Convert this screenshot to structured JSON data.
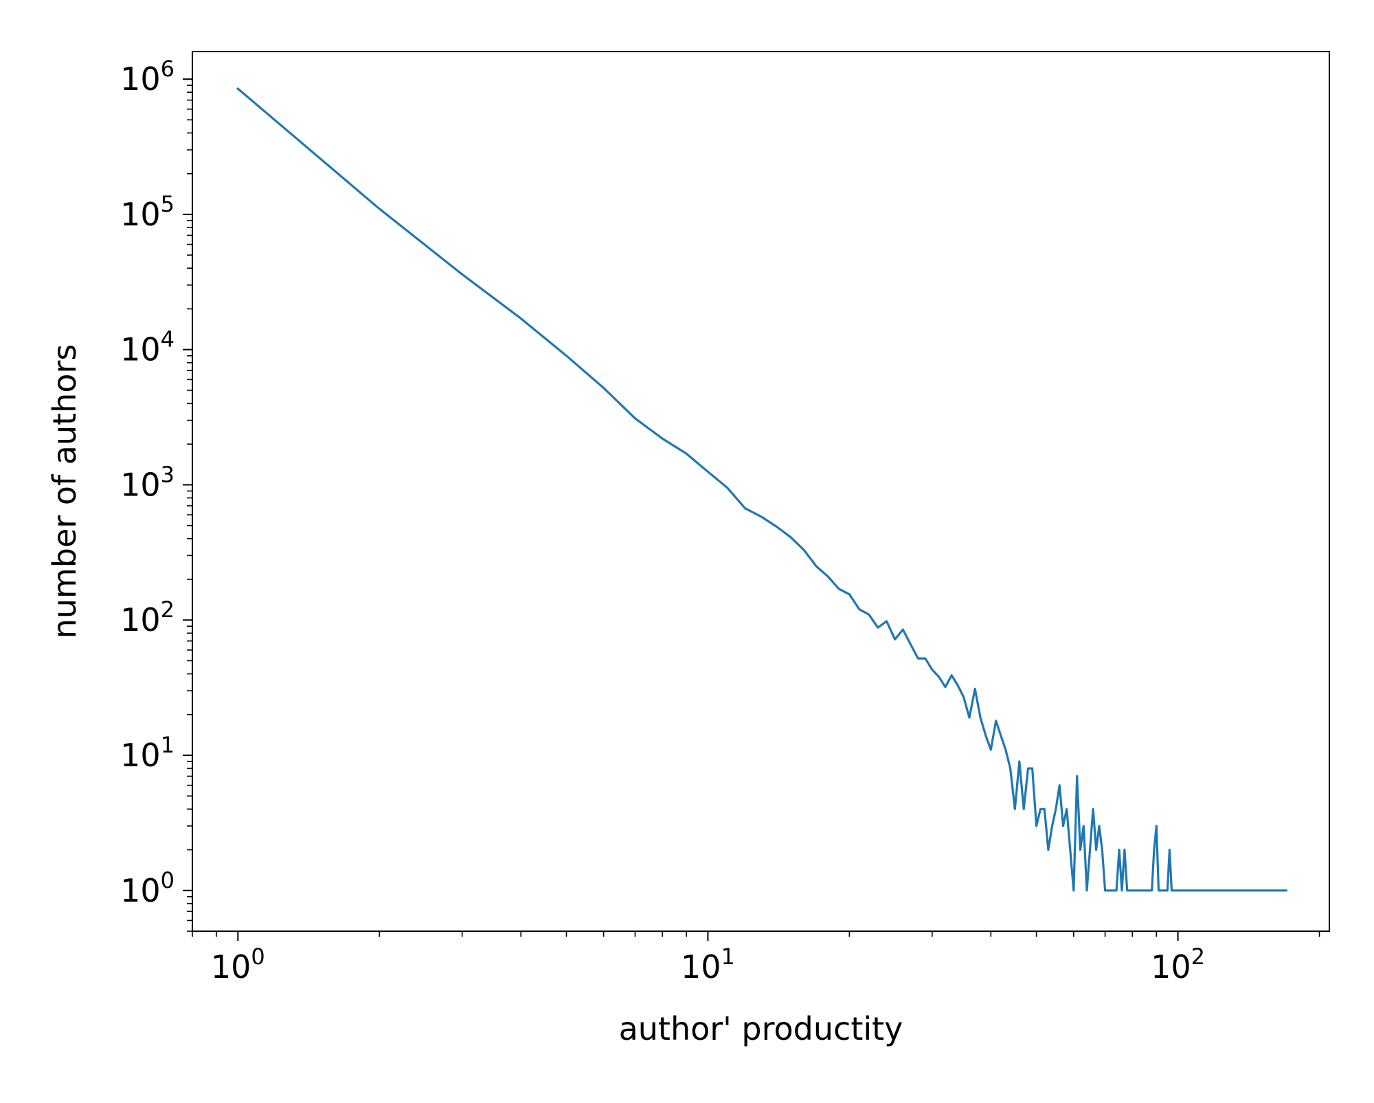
{
  "chart_data": {
    "type": "line",
    "title": "",
    "xlabel": "author' productity",
    "ylabel": "number of authors",
    "xscale": "log",
    "yscale": "log",
    "xlim": [
      0.8,
      210
    ],
    "ylim": [
      0.5,
      1600000
    ],
    "grid": false,
    "legend": "none",
    "x_ticks": [
      {
        "base": "10",
        "exp": "0",
        "value": 1
      },
      {
        "base": "10",
        "exp": "1",
        "value": 10
      },
      {
        "base": "10",
        "exp": "2",
        "value": 100
      }
    ],
    "y_ticks": [
      {
        "base": "10",
        "exp": "0",
        "value": 1
      },
      {
        "base": "10",
        "exp": "1",
        "value": 10
      },
      {
        "base": "10",
        "exp": "2",
        "value": 100
      },
      {
        "base": "10",
        "exp": "3",
        "value": 1000
      },
      {
        "base": "10",
        "exp": "4",
        "value": 10000
      },
      {
        "base": "10",
        "exp": "5",
        "value": 100000
      },
      {
        "base": "10",
        "exp": "6",
        "value": 1000000
      }
    ],
    "series": [
      {
        "color": "#1f77b4",
        "x": [
          1,
          2,
          3,
          4,
          5,
          6,
          7,
          8,
          9,
          10,
          11,
          12,
          13,
          14,
          15,
          16,
          17,
          18,
          19,
          20,
          21,
          22,
          23,
          24,
          25,
          26,
          27,
          28,
          29,
          30,
          31,
          32,
          33,
          34,
          35,
          36,
          37,
          38,
          39,
          40,
          41,
          42,
          43,
          44,
          45,
          46,
          47,
          48,
          49,
          50,
          51,
          52,
          53,
          54,
          55,
          56,
          57,
          58,
          59,
          60,
          61,
          62,
          63,
          64,
          65,
          66,
          67,
          68,
          69,
          70,
          71,
          72,
          73,
          74,
          75,
          76,
          77,
          78,
          79,
          80,
          81,
          82,
          83,
          84,
          85,
          86,
          87,
          88,
          89,
          90,
          91,
          92,
          93,
          94,
          95,
          96,
          97,
          98,
          99,
          100,
          110,
          120,
          130,
          140,
          150,
          160,
          170
        ],
        "y": [
          850000,
          110000,
          36000,
          17000,
          9000,
          5200,
          3100,
          2200,
          1700,
          1250,
          950,
          670,
          580,
          490,
          410,
          330,
          250,
          210,
          170,
          155,
          120,
          110,
          88,
          98,
          72,
          85,
          66,
          52,
          52,
          43,
          38,
          32,
          39,
          33,
          27,
          19,
          31,
          19,
          14,
          11,
          18,
          14,
          11,
          8,
          4,
          9,
          4,
          8,
          8,
          3,
          4,
          4,
          2,
          3,
          4,
          6,
          3,
          4,
          2,
          1,
          7,
          2,
          3,
          1,
          2,
          4,
          2,
          3,
          2,
          1,
          1,
          1,
          1,
          1,
          2,
          1,
          2,
          1,
          1,
          1,
          1,
          1,
          1,
          1,
          1,
          1,
          1,
          1,
          2,
          3,
          1,
          1,
          1,
          1,
          1,
          2,
          1,
          1,
          1,
          1,
          1,
          1,
          1,
          1,
          1,
          1,
          1
        ]
      }
    ]
  }
}
